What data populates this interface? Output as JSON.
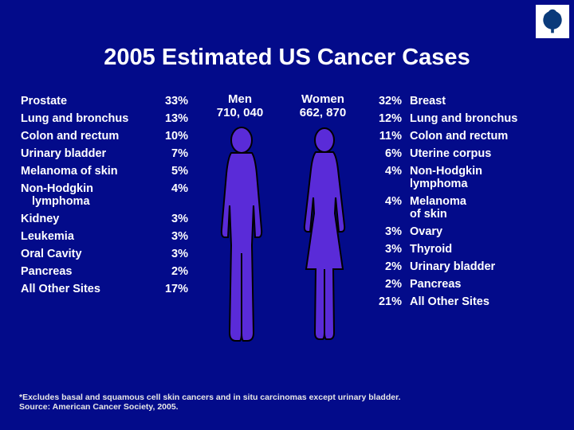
{
  "title": "2005 Estimated US Cancer Cases",
  "men": {
    "label": "Men",
    "total": "710, 040",
    "rows": [
      {
        "label": "Prostate",
        "pct": "33%"
      },
      {
        "label": "Lung and bronchus",
        "pct": "13%"
      },
      {
        "label": "Colon and rectum",
        "pct": "10%"
      },
      {
        "label": "Urinary bladder",
        "pct": "7%"
      },
      {
        "label": "Melanoma of skin",
        "pct": "5%"
      },
      {
        "label": "Non-Hodgkin",
        "label2": "lymphoma",
        "pct": "4%"
      },
      {
        "label": "Kidney",
        "pct": "3%"
      },
      {
        "label": "Leukemia",
        "pct": "3%"
      },
      {
        "label": "Oral Cavity",
        "pct": "3%"
      },
      {
        "label": "Pancreas",
        "pct": "2%"
      },
      {
        "label": "All Other Sites",
        "pct": "17%"
      }
    ]
  },
  "women": {
    "label": "Women",
    "total": "662, 870",
    "rows": [
      {
        "label": "Breast",
        "pct": "32%"
      },
      {
        "label": "Lung and bronchus",
        "pct": "12%"
      },
      {
        "label": "Colon and rectum",
        "pct": "11%"
      },
      {
        "label": "Uterine corpus",
        "pct": "6%"
      },
      {
        "label": "Non-Hodgkin",
        "label2": "lymphoma",
        "pct": "4%"
      },
      {
        "label": "Melanoma",
        "label2": "of skin",
        "pct": "4%"
      },
      {
        "label": "Ovary",
        "pct": "3%"
      },
      {
        "label": "Thyroid",
        "pct": "3%"
      },
      {
        "label": "Urinary bladder",
        "pct": "2%"
      },
      {
        "label": "Pancreas",
        "pct": "2%"
      },
      {
        "label": "All Other Sites",
        "pct": "21%"
      }
    ]
  },
  "footnote": {
    "line1": "*Excludes basal and squamous cell skin cancers and in situ carcinomas except urinary bladder.",
    "line2": "Source: American Cancer Society, 2005."
  },
  "colors": {
    "background": "#030b8a",
    "text": "#ffffff",
    "silhouette": "#000000",
    "silhouette_fill": "#5a2bd8"
  }
}
